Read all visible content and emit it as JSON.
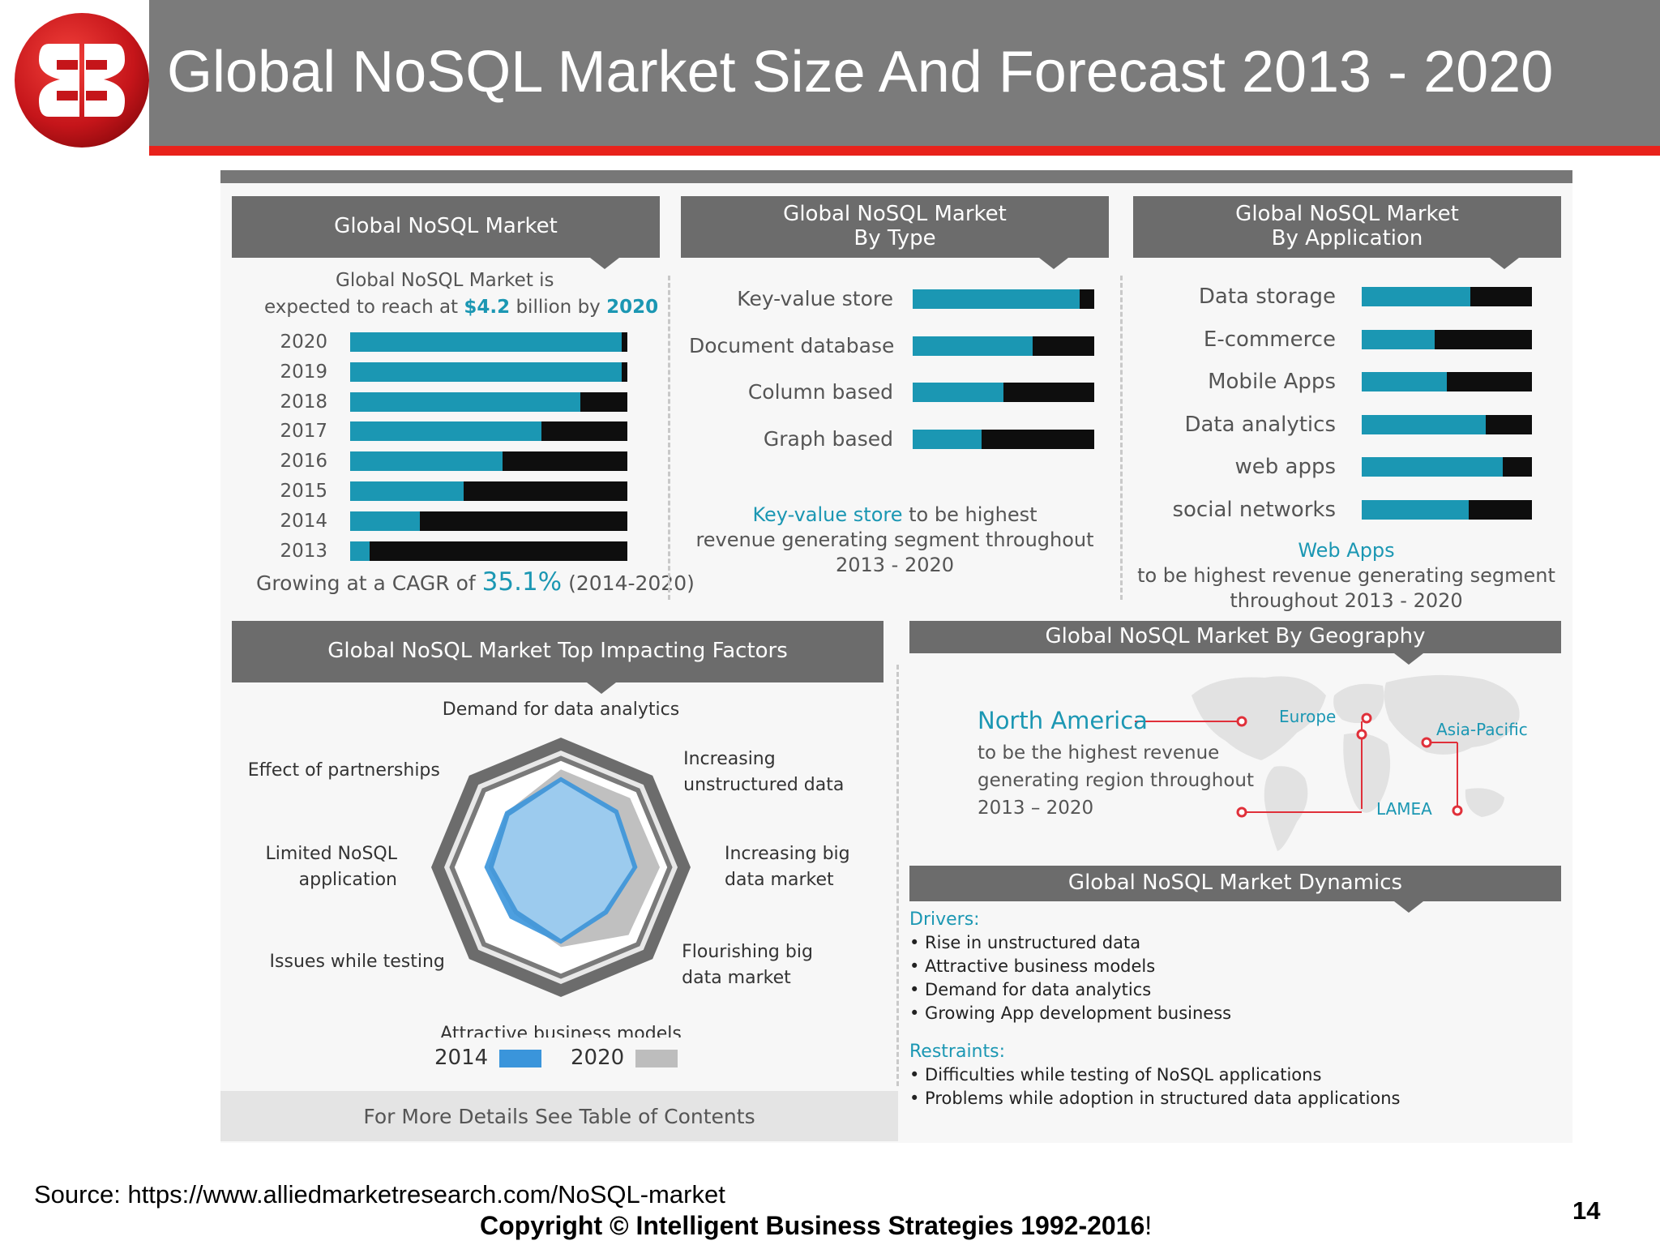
{
  "header": {
    "title": "Global NoSQL Market Size And Forecast 2013 - 2020"
  },
  "colors": {
    "teal": "#1b97b3",
    "black": "#0e0e0e",
    "band": "#6c6c6c",
    "red": "#e8221b",
    "blue_2014": "#3a95db",
    "gray_2020": "#bdbdbd"
  },
  "panels": {
    "market": {
      "heading": "Global NoSQL Market",
      "intro_line1": "Global NoSQL Market is",
      "intro_line2_pre": "expected to reach at",
      "intro_value": "$4.2",
      "intro_mid": "billion by",
      "intro_year": "2020",
      "cagr_pre": "Growing at a CAGR of",
      "cagr_value": "35.1%",
      "cagr_post": "(2014-2020)"
    },
    "by_type": {
      "heading_line1": "Global NoSQL Market",
      "heading_line2": "By Type",
      "note_highlight": "Key-value store",
      "note_line1_rest": "to be highest",
      "note_line2": "revenue generating segment throughout",
      "note_line3": "2013 - 2020"
    },
    "by_application": {
      "heading_line1": "Global NoSQL Market",
      "heading_line2": "By Application",
      "note_highlight": "Web Apps",
      "note_line2": "to be highest revenue generating segment",
      "note_line3": "throughout 2013 - 2020"
    },
    "factors": {
      "heading": "Global NoSQL Market Top Impacting Factors",
      "legend_2014": "2014",
      "legend_2020": "2020",
      "more": "For More Details See Table of Contents"
    },
    "geography": {
      "heading": "Global NoSQL Market By Geography",
      "region": "North America",
      "desc1": "to be the highest revenue",
      "desc2": "generating region throughout",
      "desc3": "2013 – 2020",
      "map_labels": {
        "europe": "Europe",
        "asia": "Asia-Pacific",
        "lamea": "LAMEA"
      }
    },
    "dynamics": {
      "heading": "Global NoSQL Market Dynamics",
      "drivers_label": "Drivers:",
      "drivers": [
        "• Rise in unstructured data",
        "• Attractive business models",
        "• Demand for data analytics",
        "• Growing App development business"
      ],
      "restraints_label": "Restraints:",
      "restraints": [
        "• Difficulties while testing of NoSQL applications",
        "• Problems while adoption in structured data applications"
      ]
    }
  },
  "chart_data": [
    {
      "type": "bar",
      "title": "Global NoSQL Market",
      "categories": [
        "2020",
        "2019",
        "2018",
        "2017",
        "2016",
        "2015",
        "2014",
        "2013"
      ],
      "values": [
        0.98,
        0.98,
        0.83,
        0.69,
        0.55,
        0.41,
        0.25,
        0.07
      ],
      "scale": "fraction of bar filled"
    },
    {
      "type": "bar",
      "title": "Global NoSQL Market By Type",
      "categories": [
        "Key-value store",
        "Document database",
        "Column based",
        "Graph based"
      ],
      "values": [
        0.92,
        0.66,
        0.5,
        0.38
      ],
      "scale": "fraction of bar filled"
    },
    {
      "type": "bar",
      "title": "Global NoSQL Market By Application",
      "categories": [
        "Data storage",
        "E-commerce",
        "Mobile Apps",
        "Data analytics",
        "web apps",
        "social networks"
      ],
      "values": [
        0.64,
        0.43,
        0.5,
        0.73,
        0.83,
        0.63
      ],
      "scale": "fraction of bar filled"
    },
    {
      "type": "radar",
      "title": "Global NoSQL Market Top Impacting Factors",
      "categories": [
        "Demand for data analytics",
        "Increasing unstructured data",
        "Increasing big data market",
        "Flourishing big data market",
        "Attractive business models",
        "Issues while testing",
        "Limited NoSQL application",
        "Effect of partnerships"
      ],
      "category_lines": [
        [
          "Demand for data analytics"
        ],
        [
          "Increasing",
          "unstructured data"
        ],
        [
          "Increasing big",
          "data market"
        ],
        [
          "Flourishing big",
          "data market"
        ],
        [
          "Attractive business models"
        ],
        [
          "Issues while testing"
        ],
        [
          "Limited NoSQL",
          "application"
        ],
        [
          "Effect of partnerships"
        ]
      ],
      "series": [
        {
          "name": "2014",
          "values": [
            0.85,
            0.76,
            0.72,
            0.62,
            0.72,
            0.68,
            0.72,
            0.74
          ]
        },
        {
          "name": "2020",
          "values": [
            0.92,
            0.92,
            0.93,
            0.9,
            0.75,
            0.62,
            0.68,
            0.73
          ]
        }
      ]
    }
  ],
  "footer": {
    "source": "Source: https://www.alliedmarketresearch.com/NoSQL-market",
    "copyright": "Copyright © Intelligent Business Strategies 1992-2016",
    "copyright_tail": "!",
    "page": "14"
  }
}
